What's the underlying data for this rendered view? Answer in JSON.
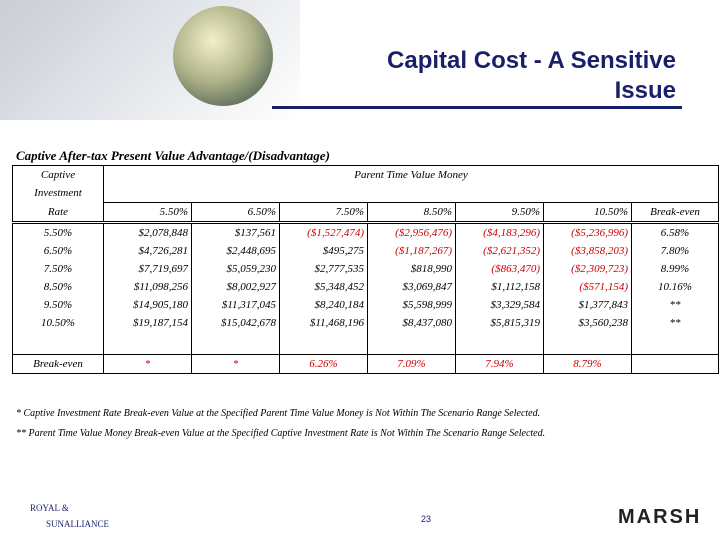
{
  "slide": {
    "title_lines": [
      "Capital Cost - A Sensitive",
      "Issue"
    ],
    "table_title": "Captive After-tax Present Value Advantage/(Disadvantage)",
    "table": {
      "corner": [
        "Captive",
        "Investment",
        "Rate"
      ],
      "group_header": "Parent Time Value Money",
      "columns": [
        "5.50%",
        "6.50%",
        "7.50%",
        "8.50%",
        "9.50%",
        "10.50%",
        "Break-even"
      ],
      "rows": [
        [
          "5.50%",
          "$2,078,848",
          "$137,561",
          "($1,527,474)",
          "($2,956,476)",
          "($4,183,296)",
          "($5,236,996)",
          "6.58%"
        ],
        [
          "6.50%",
          "$4,726,281",
          "$2,448,695",
          "$495,275",
          "($1,187,267)",
          "($2,621,352)",
          "($3,858,203)",
          "7.80%"
        ],
        [
          "7.50%",
          "$7,719,697",
          "$5,059,230",
          "$2,777,535",
          "$818,990",
          "($863,470)",
          "($2,309,723)",
          "8.99%"
        ],
        [
          "8.50%",
          "$11,098,256",
          "$8,002,927",
          "$5,348,452",
          "$3,069,847",
          "$1,112,158",
          "($571,154)",
          "10.16%"
        ],
        [
          "9.50%",
          "$14,905,180",
          "$11,317,045",
          "$8,240,184",
          "$5,598,999",
          "$3,329,584",
          "$1,377,843",
          "**"
        ],
        [
          "10.50%",
          "$19,187,154",
          "$15,042,678",
          "$11,468,196",
          "$8,437,080",
          "$5,815,319",
          "$3,560,238",
          "**"
        ]
      ],
      "break_even_row": [
        "Break-even",
        "*",
        "*",
        "6.26%",
        "7.09%",
        "7.94%",
        "8.79%"
      ]
    },
    "footnotes": [
      "* Captive Investment Rate Break-even Value at the Specified Parent Time Value Money is Not Within The Scenario Range Selected.",
      "** Parent Time Value Money Break-even Value at the Specified Captive Investment Rate is Not Within The Scenario Range Selected."
    ],
    "page_number": "23",
    "logo_left_top": "ROYAL &",
    "logo_left_bottom": "SUNALLIANCE",
    "logo_right": "MARSH"
  }
}
